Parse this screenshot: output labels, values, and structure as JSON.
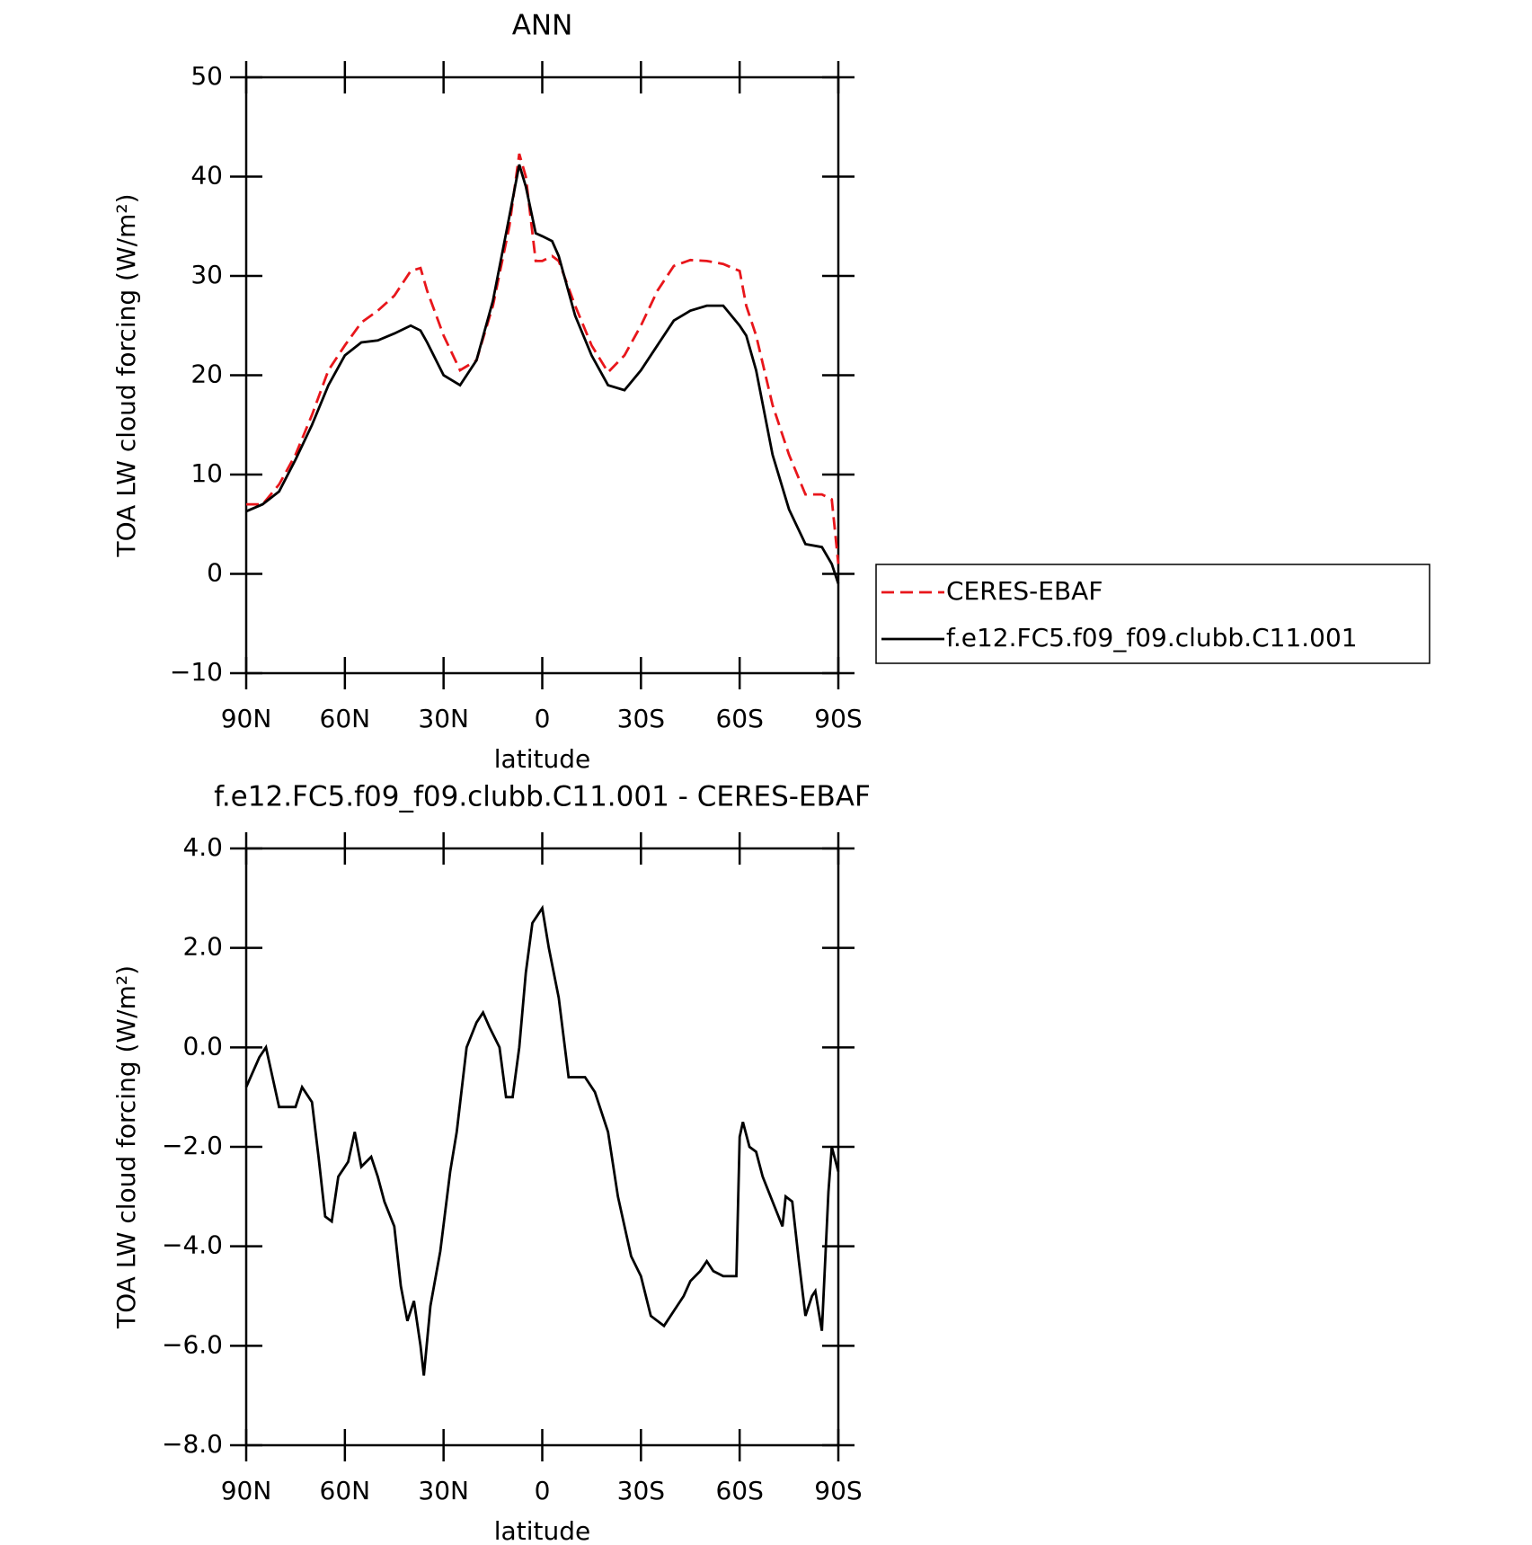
{
  "chart_data": [
    {
      "type": "line",
      "title": "ANN",
      "xlabel": "latitude",
      "ylabel": "TOA LW cloud forcing (W/m²)",
      "x": [
        90,
        85,
        80,
        75,
        70,
        65,
        60,
        55,
        50,
        45,
        40,
        37,
        35,
        30,
        25,
        20,
        15,
        10,
        7,
        5,
        2,
        0,
        -3,
        -5,
        -10,
        -15,
        -20,
        -25,
        -30,
        -35,
        -40,
        -45,
        -50,
        -55,
        -60,
        -62,
        -65,
        -70,
        -75,
        -80,
        -85,
        -88,
        -90
      ],
      "series": [
        {
          "name": "CERES-EBAF",
          "color": "#e8161b",
          "style": "dashed",
          "values": [
            7.0,
            7.0,
            9.0,
            12,
            16,
            20.5,
            23,
            25.3,
            26.5,
            28,
            30.5,
            30.8,
            28.5,
            24,
            20.5,
            21.5,
            27,
            35,
            42.3,
            40,
            31.5,
            31.5,
            32,
            31.5,
            27,
            23,
            20.3,
            22,
            25,
            28.5,
            31,
            31.6,
            31.5,
            31.2,
            30.5,
            27,
            24,
            17,
            12,
            8,
            8,
            7.5,
            1
          ]
        },
        {
          "name": "f.e12.FC5.f09_f09.clubb.C11.001",
          "color": "#000000",
          "style": "solid",
          "values": [
            6.3,
            7.0,
            8.3,
            11.5,
            15,
            19,
            22,
            23.3,
            23.5,
            24.2,
            25.0,
            24.5,
            23.3,
            20,
            19,
            21.5,
            27.5,
            36,
            41.2,
            39,
            34.3,
            34,
            33.5,
            32,
            26,
            22,
            19,
            18.5,
            20.5,
            23,
            25.5,
            26.5,
            27,
            27,
            25,
            24,
            20.5,
            12,
            6.5,
            3,
            2.7,
            1,
            -1
          ]
        }
      ],
      "xlim": [
        90,
        -90
      ],
      "xticks": [
        {
          "value": 90,
          "label": "90N"
        },
        {
          "value": 60,
          "label": "60N"
        },
        {
          "value": 30,
          "label": "30N"
        },
        0,
        {
          "value": -30,
          "label": "30S"
        },
        {
          "value": -60,
          "label": "60S"
        },
        {
          "value": -90,
          "label": "90S"
        }
      ],
      "ylim": [
        -10,
        50
      ],
      "yticks": [
        {
          "value": -10,
          "label": "−10"
        },
        0,
        10,
        20,
        30,
        40,
        50
      ],
      "legend": "right"
    },
    {
      "type": "line",
      "title": "f.e12.FC5.f09_f09.clubb.C11.001 - CERES-EBAF",
      "xlabel": "latitude",
      "ylabel": "TOA LW cloud forcing (W/m²)",
      "x": [
        90,
        86,
        84,
        82,
        80,
        78,
        75,
        73,
        70,
        68,
        66,
        64,
        62,
        59,
        57,
        55,
        52,
        50,
        48,
        45,
        43,
        41,
        39,
        37,
        36,
        34,
        31,
        28,
        26,
        23,
        20,
        18,
        16,
        13,
        11,
        9,
        7,
        5,
        3,
        0,
        -2,
        -5,
        -8,
        -10,
        -13,
        -16,
        -20,
        -23,
        -27,
        -30,
        -33,
        -37,
        -40,
        -43,
        -45,
        -48,
        -50,
        -52,
        -55,
        -59,
        -60,
        -61,
        -63,
        -65,
        -67,
        -70,
        -73,
        -74,
        -76,
        -78,
        -80,
        -82,
        -83,
        -85,
        -87,
        -88,
        -90
      ],
      "series": [
        {
          "name": "f.e12.FC5.f09_f09.clubb.C11.001",
          "color": "#000000",
          "style": "solid",
          "values": [
            -0.8,
            -0.2,
            0.0,
            -0.6,
            -1.2,
            -1.2,
            -1.2,
            -0.8,
            -1.1,
            -2.2,
            -3.4,
            -3.5,
            -2.6,
            -2.3,
            -1.7,
            -2.4,
            -2.2,
            -2.6,
            -3.1,
            -3.6,
            -4.8,
            -5.5,
            -5.1,
            -6.0,
            -6.6,
            -5.2,
            -4.1,
            -2.5,
            -1.7,
            0.0,
            0.5,
            0.7,
            0.4,
            0.0,
            -1.0,
            -1.0,
            0.0,
            1.5,
            2.5,
            2.8,
            2.0,
            1.0,
            -0.6,
            -0.6,
            -0.6,
            -0.9,
            -1.7,
            -3.0,
            -4.2,
            -4.6,
            -5.4,
            -5.6,
            -5.3,
            -5.0,
            -4.7,
            -4.5,
            -4.3,
            -4.5,
            -4.6,
            -4.6,
            -1.8,
            -1.5,
            -2.0,
            -2.1,
            -2.6,
            -3.1,
            -3.6,
            -3.0,
            -3.1,
            -4.3,
            -5.4,
            -5.0,
            -4.9,
            -5.7,
            -2.9,
            -2.0,
            -2.5
          ]
        }
      ],
      "xlim": [
        90,
        -90
      ],
      "xticks": [
        {
          "value": 90,
          "label": "90N"
        },
        {
          "value": 60,
          "label": "60N"
        },
        {
          "value": 30,
          "label": "30N"
        },
        0,
        {
          "value": -30,
          "label": "30S"
        },
        {
          "value": -60,
          "label": "60S"
        },
        {
          "value": -90,
          "label": "90S"
        }
      ],
      "ylim": [
        -8,
        4
      ],
      "yticks": [
        {
          "value": -8,
          "label": "−8.0"
        },
        {
          "value": -6,
          "label": "−6.0"
        },
        {
          "value": -4,
          "label": "−4.0"
        },
        {
          "value": -2,
          "label": "−2.0"
        },
        {
          "value": 0,
          "label": "0.0"
        },
        {
          "value": 2,
          "label": "2.0"
        },
        {
          "value": 4,
          "label": "4.0"
        }
      ]
    }
  ]
}
